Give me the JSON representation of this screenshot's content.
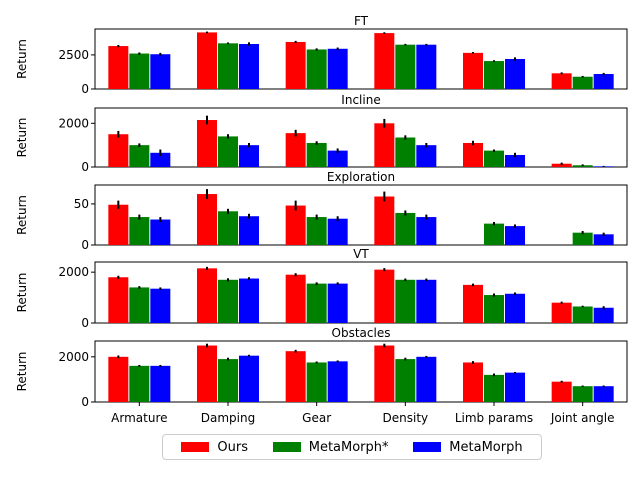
{
  "chart_data": {
    "type": "bar",
    "categories": [
      "Armature",
      "Damping",
      "Gear",
      "Density",
      "Limb params",
      "Joint angle"
    ],
    "legend": [
      {
        "name": "Ours",
        "color": "#ff0000"
      },
      {
        "name": "MetaMorph*",
        "color": "#008000"
      },
      {
        "name": "MetaMorph",
        "color": "#0000ff"
      }
    ],
    "legend_position": "bottom-center",
    "subplots": [
      {
        "title": "FT",
        "ylabel": "Return",
        "ylim": [
          0,
          4400
        ],
        "yticks": [
          0,
          2500
        ],
        "series": [
          {
            "name": "Ours",
            "values": [
              3150,
              4150,
              3450,
              4100,
              2650,
              1150
            ],
            "errors": [
              80,
              60,
              80,
              60,
              60,
              70
            ]
          },
          {
            "name": "MetaMorph*",
            "values": [
              2600,
              3350,
              2900,
              3250,
              2050,
              900
            ],
            "errors": [
              80,
              60,
              80,
              60,
              60,
              60
            ]
          },
          {
            "name": "MetaMorph",
            "values": [
              2550,
              3300,
              2950,
              3250,
              2200,
              1100
            ],
            "errors": [
              100,
              120,
              90,
              60,
              120,
              80
            ]
          }
        ]
      },
      {
        "title": "Incline",
        "ylabel": "Return",
        "ylim": [
          0,
          2700
        ],
        "yticks": [
          0,
          2000
        ],
        "series": [
          {
            "name": "Ours",
            "values": [
              1500,
              2150,
              1550,
              2000,
              1100,
              150
            ],
            "errors": [
              150,
              200,
              150,
              200,
              100,
              50
            ]
          },
          {
            "name": "MetaMorph*",
            "values": [
              1000,
              1400,
              1100,
              1350,
              750,
              80
            ],
            "errors": [
              80,
              100,
              80,
              100,
              50,
              40
            ]
          },
          {
            "name": "MetaMorph",
            "values": [
              650,
              1000,
              750,
              1000,
              550,
              30
            ],
            "errors": [
              150,
              100,
              100,
              100,
              100,
              20
            ]
          }
        ]
      },
      {
        "title": "Exploration",
        "ylabel": "Return",
        "ylim": [
          0,
          73
        ],
        "yticks": [
          0,
          50
        ],
        "series": [
          {
            "name": "Ours",
            "values": [
              49,
              62,
              48,
              59,
              0,
              0
            ],
            "errors": [
              5,
              6,
              6,
              6,
              0,
              0
            ]
          },
          {
            "name": "MetaMorph*",
            "values": [
              34,
              41,
              34,
              39,
              26,
              15
            ],
            "errors": [
              3,
              3,
              3,
              3,
              2,
              2
            ]
          },
          {
            "name": "MetaMorph",
            "values": [
              31,
              35,
              32,
              34,
              23,
              13
            ],
            "errors": [
              3,
              3,
              3,
              3,
              2,
              2
            ]
          }
        ]
      },
      {
        "title": "VT",
        "ylabel": "Return",
        "ylim": [
          0,
          2400
        ],
        "yticks": [
          0,
          2000
        ],
        "series": [
          {
            "name": "Ours",
            "values": [
              1800,
              2150,
              1900,
              2100,
              1500,
              800
            ],
            "errors": [
              60,
              60,
              60,
              60,
              50,
              40
            ]
          },
          {
            "name": "MetaMorph*",
            "values": [
              1400,
              1700,
              1550,
              1700,
              1100,
              650
            ],
            "errors": [
              50,
              60,
              50,
              50,
              60,
              30
            ]
          },
          {
            "name": "MetaMorph",
            "values": [
              1350,
              1750,
              1550,
              1700,
              1150,
              600
            ],
            "errors": [
              50,
              50,
              50,
              50,
              50,
              60
            ]
          }
        ]
      },
      {
        "title": "Obstacles",
        "ylabel": "Return",
        "ylim": [
          0,
          2700
        ],
        "yticks": [
          0,
          2000
        ],
        "series": [
          {
            "name": "Ours",
            "values": [
              2000,
              2500,
              2250,
              2500,
              1750,
              900
            ],
            "errors": [
              60,
              80,
              60,
              80,
              60,
              40
            ]
          },
          {
            "name": "MetaMorph*",
            "values": [
              1600,
              1900,
              1750,
              1900,
              1200,
              700
            ],
            "errors": [
              40,
              60,
              40,
              60,
              60,
              30
            ]
          },
          {
            "name": "MetaMorph",
            "values": [
              1600,
              2050,
              1800,
              2000,
              1300,
              700
            ],
            "errors": [
              40,
              40,
              40,
              40,
              30,
              30
            ]
          }
        ]
      }
    ]
  }
}
